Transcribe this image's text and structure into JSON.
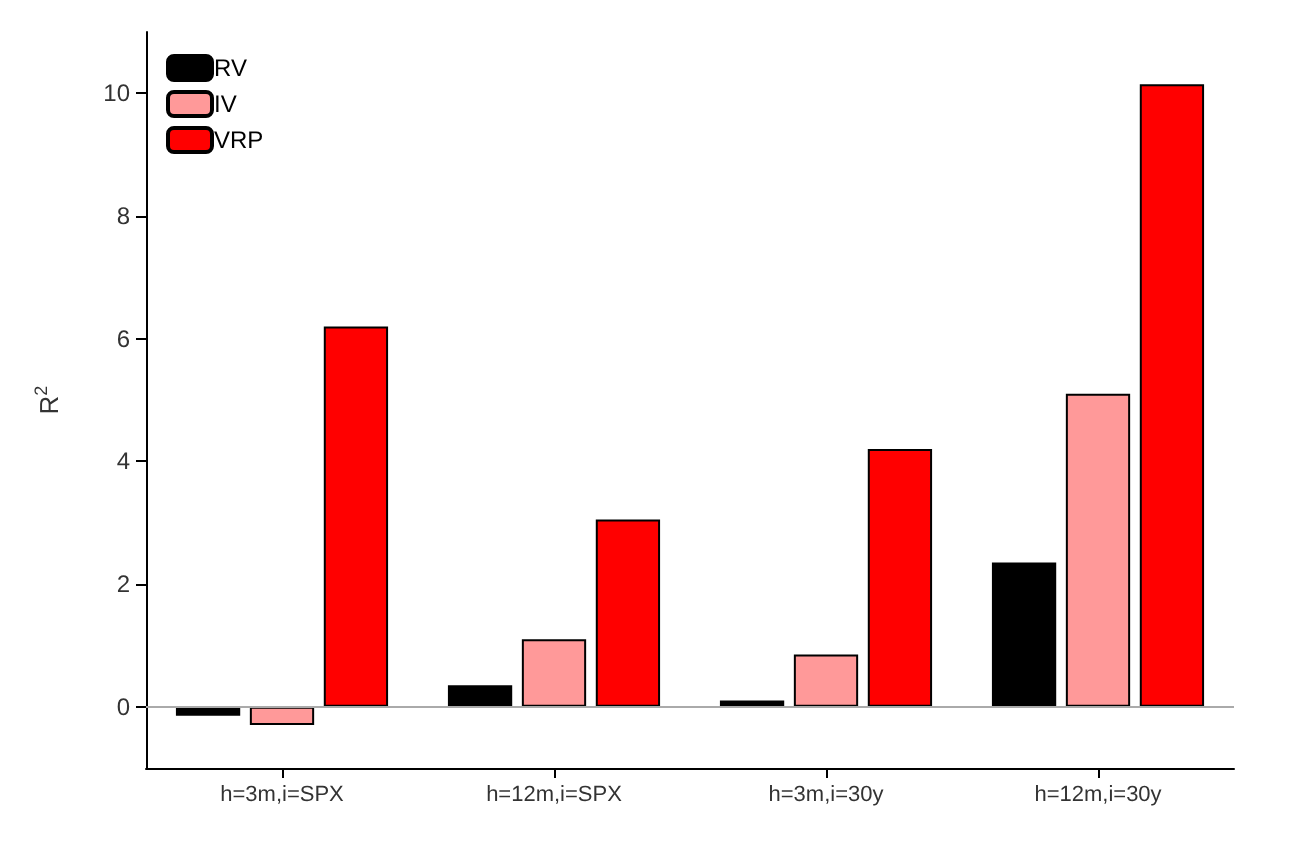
{
  "chart_data": {
    "type": "bar",
    "ylabel": "R$^{2}$",
    "categories": [
      "h=3m,i=SPX",
      "h=12m,i=SPX",
      "h=3m,i=30y",
      "h=12m,i=30y"
    ],
    "series": [
      {
        "name": "RV",
        "color": "#000000",
        "values": [
          -0.15,
          0.35,
          0.1,
          2.35
        ]
      },
      {
        "name": "IV",
        "color": "#ff9999",
        "values": [
          -0.3,
          1.1,
          0.85,
          5.1
        ]
      },
      {
        "name": "VRP",
        "color": "#ff0000",
        "values": [
          6.2,
          3.05,
          4.2,
          10.15
        ]
      }
    ],
    "ylim": [
      -1,
      11
    ],
    "yticks": [
      0,
      2,
      4,
      6,
      8,
      10
    ],
    "grid": false,
    "legend": "top left",
    "ref_lines": [
      {
        "axis": "y",
        "value": 0,
        "color": "#aaaaaa"
      }
    ]
  }
}
